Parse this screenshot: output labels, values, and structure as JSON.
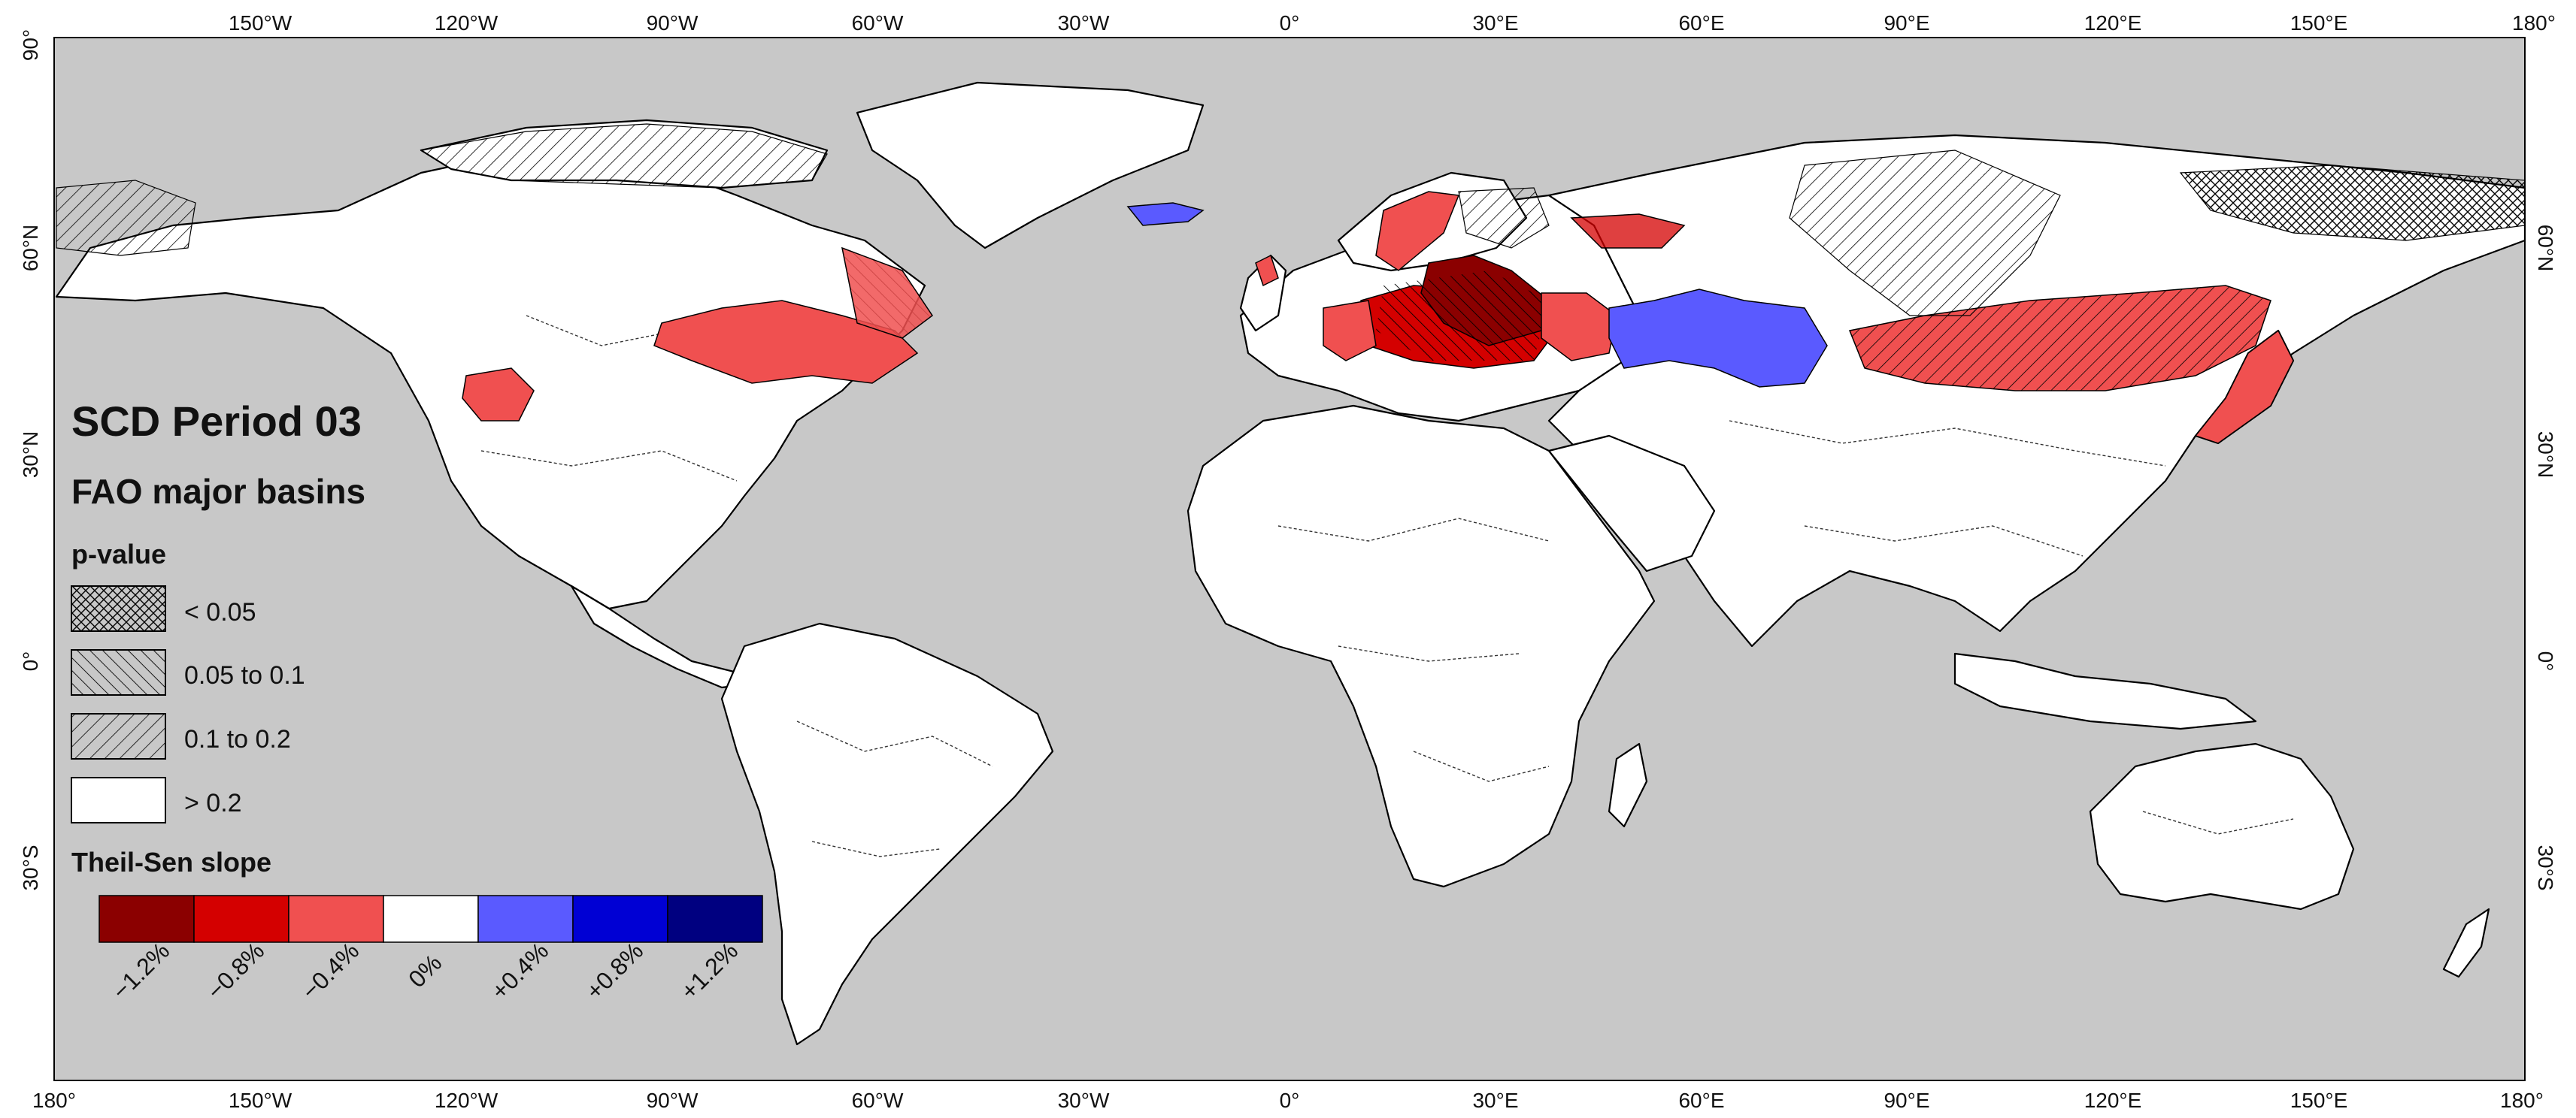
{
  "map": {
    "title": "SCD Period 03",
    "subtitle": "FAO major basins",
    "ocean_color": "#c8c8c8",
    "land_color": "#ffffff"
  },
  "axes": {
    "top_labels": [
      "150°W",
      "120°W",
      "90°W",
      "60°W",
      "30°W",
      "0°",
      "30°E",
      "60°E",
      "90°E",
      "120°E",
      "150°E",
      "180°"
    ],
    "bottom_labels": [
      "180°",
      "150°W",
      "120°W",
      "90°W",
      "60°W",
      "30°W",
      "0°",
      "30°E",
      "60°E",
      "90°E",
      "120°E",
      "150°E",
      "180°"
    ],
    "left_labels": [
      "90°",
      "60°N",
      "30°N",
      "0°",
      "30°S"
    ],
    "right_labels": [
      "60°N",
      "30°N",
      "0°",
      "30°S"
    ]
  },
  "legend": {
    "pvalue_title": "p-value",
    "pvalue_items": [
      {
        "label": "< 0.05",
        "pattern": "cross-hatch"
      },
      {
        "label": "0.05 to 0.1",
        "pattern": "forward-hatch"
      },
      {
        "label": "0.1 to 0.2",
        "pattern": "back-hatch"
      },
      {
        "label": "> 0.2",
        "pattern": "none"
      }
    ],
    "slope_title": "Theil-Sen slope",
    "slope_colors": [
      "#8b0000",
      "#d40000",
      "#f05050",
      "#ffffff",
      "#5a5aff",
      "#0000d4",
      "#000080"
    ],
    "slope_labels": [
      "−1.2%",
      "−0.8%",
      "−0.4%",
      "0%",
      "+0.4%",
      "+0.8%",
      "+1.2%"
    ]
  }
}
